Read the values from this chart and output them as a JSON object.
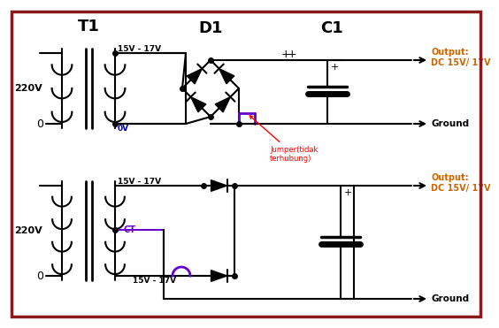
{
  "background_color": "#ffffff",
  "border_color": "#8B1A1A",
  "colors": {
    "black": "#000000",
    "purple": "#6600CC",
    "red": "#FF0000",
    "orange": "#CC6600"
  },
  "labels": {
    "T1": "T1",
    "D1": "D1",
    "C1": "C1",
    "220V_top": "220V",
    "220V_bot": "220V",
    "15V17V_top": "15V - 17V",
    "0V_top": "0V",
    "output_top": "Output:\nDC 15V/ 17V",
    "ground_top": "Ground",
    "jumper": "Jumper(tidak\nterhubung)",
    "CT": "CT",
    "15V17V_bot_top": "15V - 17V",
    "15V17V_bot_bot": "15V - 17V",
    "output_bot": "Output:\nDC 15V/ 17V",
    "ground_bot": "Ground"
  }
}
